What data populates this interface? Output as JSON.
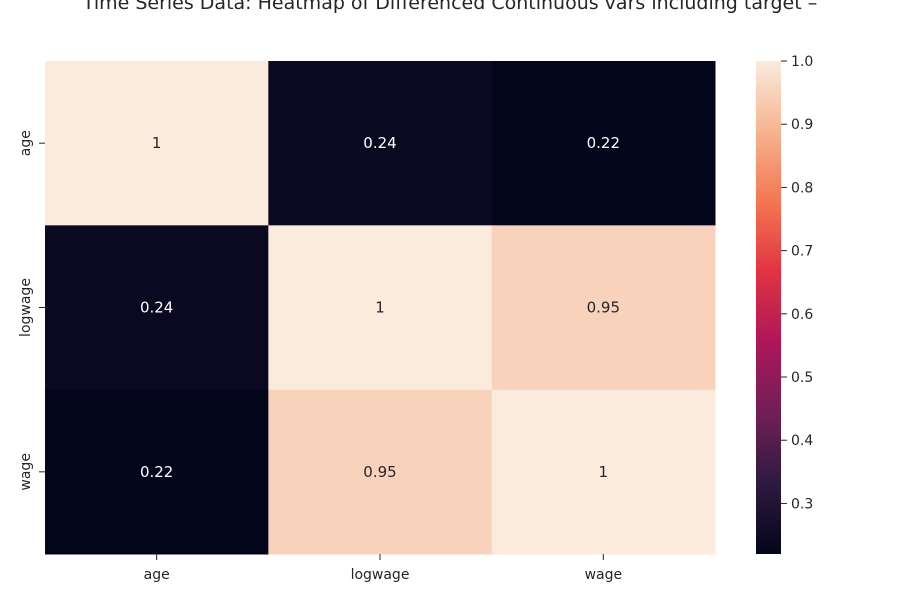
{
  "chart_data": {
    "type": "heatmap",
    "title": "Time Series Data: Heatmap of Differenced Continuous vars including target –",
    "xlabel": "",
    "ylabel": "",
    "x_categories": [
      "age",
      "logwage",
      "wage"
    ],
    "y_categories": [
      "age",
      "logwage",
      "wage"
    ],
    "values": [
      [
        1,
        0.24,
        0.22
      ],
      [
        0.24,
        1,
        0.95
      ],
      [
        0.22,
        0.95,
        1
      ]
    ],
    "annotations": [
      [
        "1",
        "0.24",
        "0.22"
      ],
      [
        "0.24",
        "1",
        "0.95"
      ],
      [
        "0.22",
        "0.95",
        "1"
      ]
    ],
    "colorbar": {
      "vmin": 0.22,
      "vmax": 1.0,
      "ticks": [
        0.3,
        0.4,
        0.5,
        0.6,
        0.7,
        0.8,
        0.9,
        1.0
      ],
      "tick_labels": [
        "0.3",
        "0.4",
        "0.5",
        "0.6",
        "0.7",
        "0.8",
        "0.9",
        "1.0"
      ],
      "colormap": "rocket",
      "stops": [
        "#03051a",
        "#2d1a40",
        "#701f57",
        "#ad1759",
        "#e13342",
        "#f37651",
        "#f6b48f",
        "#faebdd"
      ]
    },
    "grid": false,
    "legend": "colorbar-right"
  }
}
